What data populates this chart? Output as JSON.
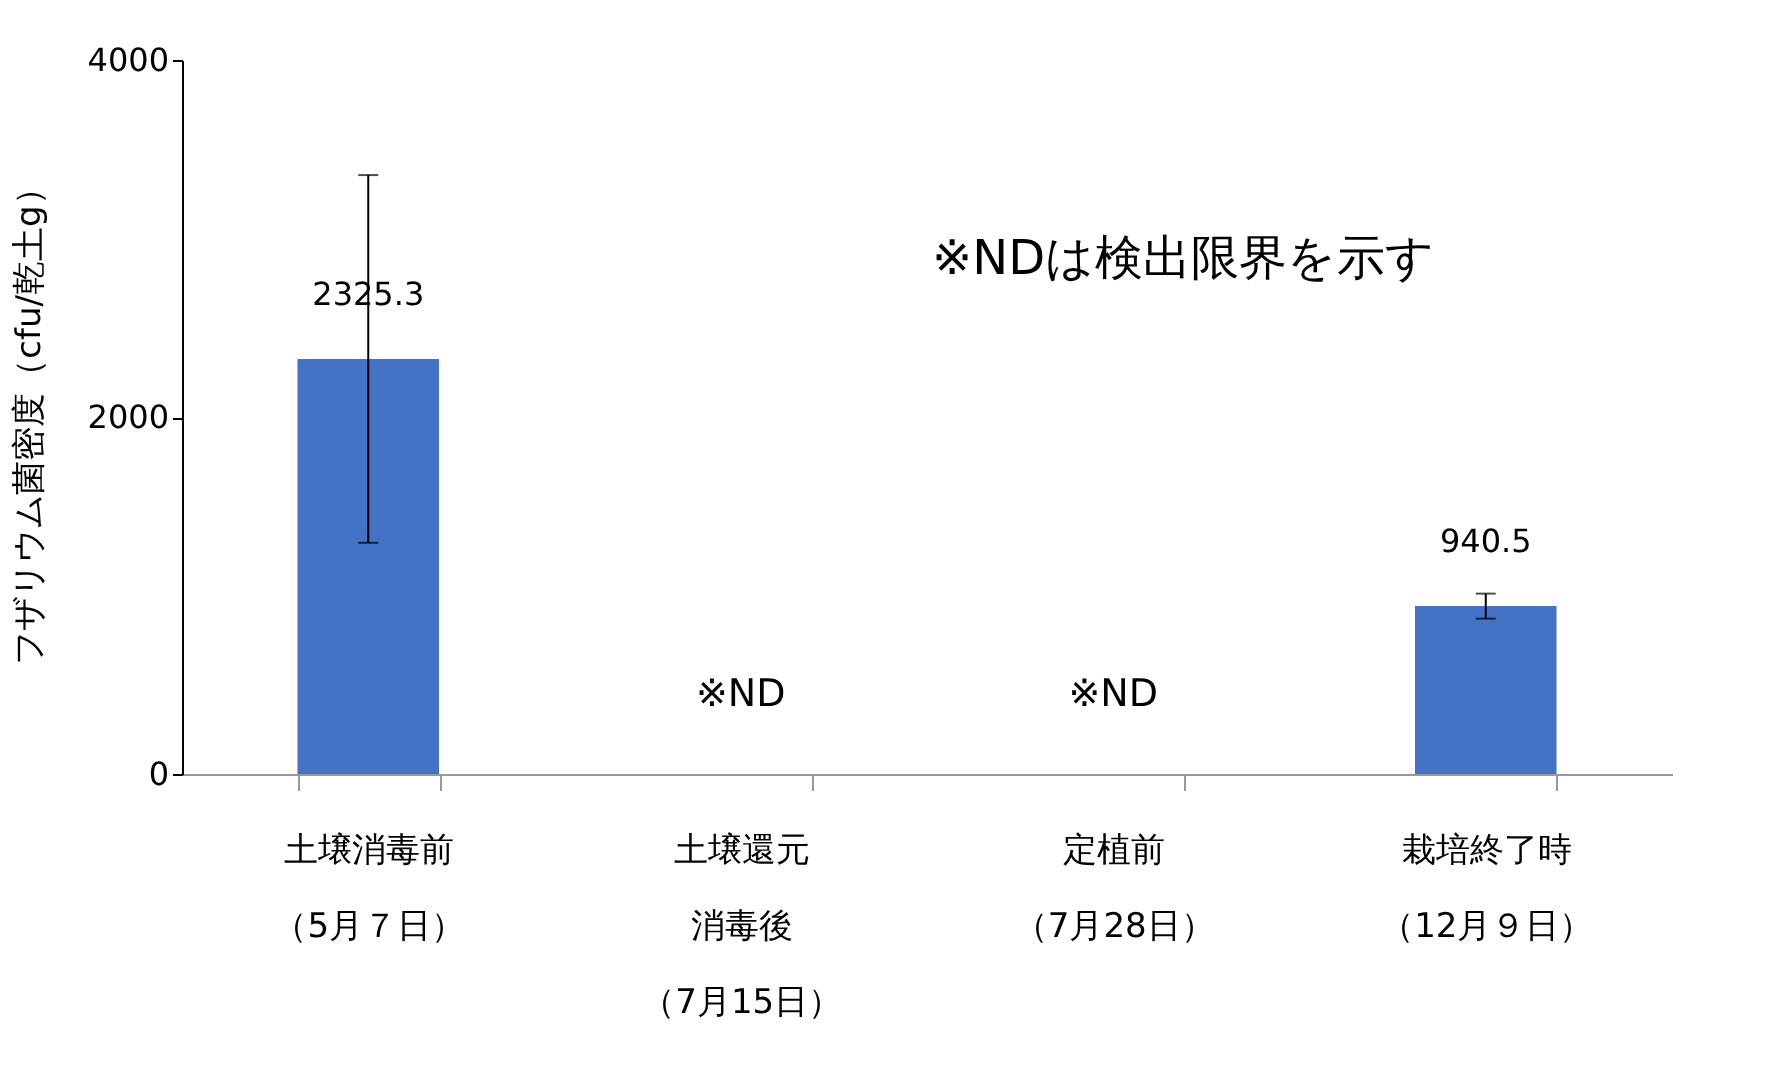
{
  "chart_data": {
    "type": "bar",
    "ylabel": "フザリウム菌密度（cfu/乾土g）",
    "categories": [
      "土壌消毒前（5月７日）",
      "土壌還元消毒後（7月15日）",
      "定植前（7月28日）",
      "栽培終了時（12月９日）"
    ],
    "values": [
      2325.3,
      null,
      null,
      940.5
    ],
    "errors": [
      1030,
      null,
      null,
      70
    ],
    "color": "#4472c4",
    "value_labels": [
      "2325.3",
      "※ND",
      "※ND",
      "940.5"
    ],
    "ylim": [
      0,
      4000
    ],
    "yticks": [
      0,
      2000,
      4000
    ],
    "grid": false,
    "annotations": [
      "※NDは検出限界を示す"
    ]
  }
}
